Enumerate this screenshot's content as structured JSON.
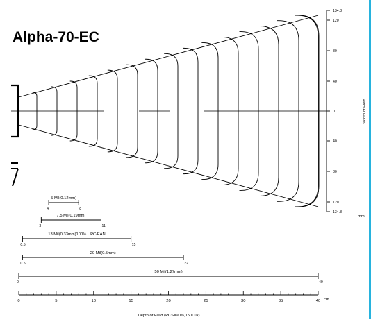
{
  "title": "Alpha-70-EC",
  "width_axis": {
    "label": "Width of Field",
    "unit": "mm",
    "ticks": [
      "134.8",
      "120",
      "80",
      "40",
      "0",
      "40",
      "80",
      "120",
      "134.8"
    ]
  },
  "depth_axis": {
    "label": "Depth of Field (PCS=90%,150Lux)",
    "unit": "cm",
    "ticks": [
      "0",
      "5",
      "10",
      "15",
      "20",
      "25",
      "30",
      "35",
      "40"
    ]
  },
  "ranges": [
    {
      "label": "5 Mil(0.12mm)",
      "start_label": "4",
      "end_label": "8",
      "start_cm": 4,
      "end_cm": 8
    },
    {
      "label": "7.5 Mil(0.19mm)",
      "start_label": "3",
      "end_label": "11",
      "start_cm": 3,
      "end_cm": 11
    },
    {
      "label": "13 Mil(0.33mm)100% UPC/EAN",
      "start_label": "0.5",
      "end_label": "15",
      "start_cm": 0.5,
      "end_cm": 15
    },
    {
      "label": "20 Mil(0.5mm)",
      "start_label": "0.5",
      "end_label": "22",
      "start_cm": 0.5,
      "end_cm": 22
    },
    {
      "label": "50 Mil(1.27mm)",
      "start_label": "0",
      "end_label": "40",
      "start_cm": 0,
      "end_cm": 40
    }
  ],
  "cone": {
    "max_depth_cm": 40,
    "half_width_at_max_mm": 134.8
  },
  "colors": {
    "line": "#000000",
    "accent": "#27b3de"
  }
}
